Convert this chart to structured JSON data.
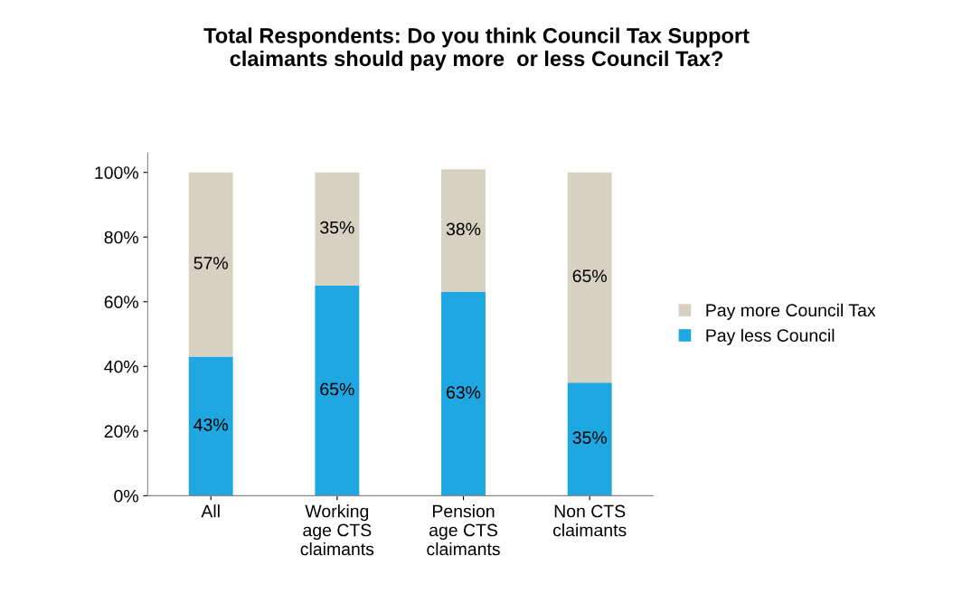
{
  "chart_data": {
    "type": "bar",
    "title": "Total Respondents: Do you think Council Tax Support\nclaimants should pay more  or less Council Tax?",
    "categories": [
      "All",
      "Working\nage CTS\nclaimants",
      "Pension\nage CTS\nclaimants",
      "Non CTS\nclaimants"
    ],
    "stacked": true,
    "series": [
      {
        "name": "Pay less Council",
        "color": "#1ea7e1",
        "values": [
          43,
          65,
          63,
          35
        ],
        "value_labels": [
          "43%",
          "65%",
          "63%",
          "35%"
        ]
      },
      {
        "name": "Pay more Council Tax",
        "color": "#d6d1c0",
        "values": [
          57,
          35,
          38,
          65
        ],
        "value_labels": [
          "57%",
          "35%",
          "38%",
          "65%"
        ]
      }
    ],
    "ylim": [
      0,
      106
    ],
    "yticks": [
      {
        "value": 0,
        "label": "0%"
      },
      {
        "value": 20,
        "label": "20%"
      },
      {
        "value": 40,
        "label": "40%"
      },
      {
        "value": 60,
        "label": "60%"
      },
      {
        "value": 80,
        "label": "80%"
      },
      {
        "value": 100,
        "label": "100%"
      }
    ],
    "grid": false,
    "legend": "right"
  }
}
